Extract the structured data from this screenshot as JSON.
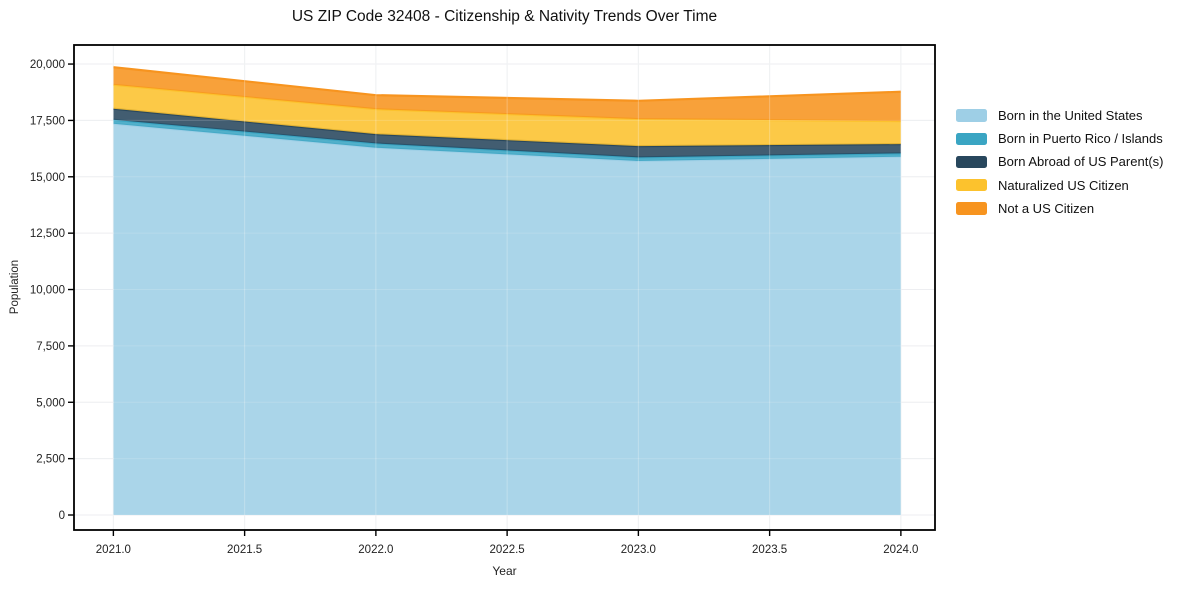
{
  "title": "US ZIP Code 32408 - Citizenship & Nativity Trends Over Time",
  "axes": {
    "x_label": "Year",
    "y_label": "Population",
    "x_ticks": [
      {
        "value": 2021.0,
        "label": "2021.0"
      },
      {
        "value": 2021.5,
        "label": "2021.5"
      },
      {
        "value": 2022.0,
        "label": "2022.0"
      },
      {
        "value": 2022.5,
        "label": "2022.5"
      },
      {
        "value": 2023.0,
        "label": "2023.0"
      },
      {
        "value": 2023.5,
        "label": "2023.5"
      },
      {
        "value": 2024.0,
        "label": "2024.0"
      }
    ],
    "y_ticks": [
      {
        "value": 0,
        "label": "0"
      },
      {
        "value": 2500,
        "label": "2,500"
      },
      {
        "value": 5000,
        "label": "5,000"
      },
      {
        "value": 7500,
        "label": "7,500"
      },
      {
        "value": 10000,
        "label": "10,000"
      },
      {
        "value": 12500,
        "label": "12,500"
      },
      {
        "value": 15000,
        "label": "15,000"
      },
      {
        "value": 17500,
        "label": "17,500"
      },
      {
        "value": 20000,
        "label": "20,000"
      }
    ]
  },
  "colors": {
    "grid": "#e9ebee",
    "axis": "#000000",
    "tick_text": "#222222",
    "plot_bg": "#ffffff"
  },
  "chart_data": {
    "type": "area",
    "stacked": true,
    "title": "US ZIP Code 32408 - Citizenship & Nativity Trends Over Time",
    "xlabel": "Year",
    "ylabel": "Population",
    "x": [
      2021,
      2022,
      2023,
      2024
    ],
    "series": [
      {
        "name": "Born in the United States",
        "color": "#9ecfe6",
        "values": [
          17350,
          16290,
          15700,
          15890
        ]
      },
      {
        "name": "Born in Puerto Rico / Islands",
        "color": "#3aa5c3",
        "values": [
          180,
          190,
          160,
          150
        ]
      },
      {
        "name": "Born Abroad of US Parent(s)",
        "color": "#28475d",
        "values": [
          490,
          410,
          500,
          410
        ]
      },
      {
        "name": "Naturalized US Citizen",
        "color": "#fcc22d",
        "values": [
          1060,
          1110,
          1200,
          1020
        ]
      },
      {
        "name": "Not a US Citizen",
        "color": "#f7941f",
        "values": [
          780,
          620,
          810,
          1300
        ]
      }
    ],
    "stacked_totals": [
      19860,
      18620,
      18370,
      18770
    ],
    "xlim": [
      2020.85,
      2024.13
    ],
    "ylim": [
      -665,
      20845
    ],
    "grid": true,
    "legend_position": "right-outside"
  }
}
